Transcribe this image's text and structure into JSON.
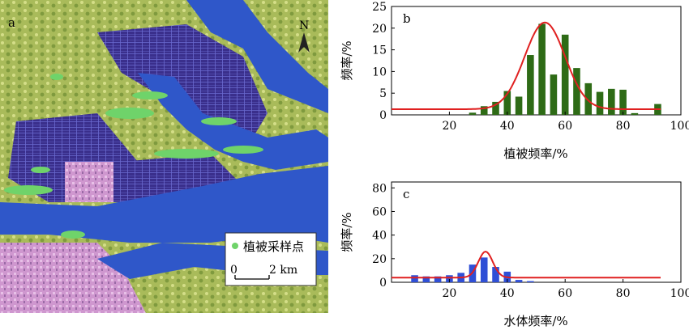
{
  "map": {
    "panel_label": "a",
    "north_label": "N",
    "legend_label": "植被采样点",
    "scale_zero": "0",
    "scale_value": "2 km",
    "colors": {
      "water": "#2f57c9",
      "vegetation_point": "#6fd36a",
      "land": "#b9c96a",
      "urban": "#d79ad2",
      "fields": "#3b2f8f"
    }
  },
  "chart_data": [
    {
      "type": "bar",
      "panel_label": "b",
      "xlabel": "植被频率/%",
      "ylabel": "频率/%",
      "xlim": [
        0,
        100
      ],
      "ylim": [
        0,
        25
      ],
      "xticks": [
        20,
        40,
        60,
        80,
        100
      ],
      "yticks": [
        0,
        5,
        10,
        15,
        20,
        25
      ],
      "bar_color": "#2e6b16",
      "curve_color": "#e02020",
      "x": [
        28,
        32,
        36,
        40,
        44,
        48,
        52,
        56,
        60,
        64,
        68,
        72,
        76,
        80,
        84,
        88,
        92
      ],
      "values": [
        0.5,
        2.0,
        3.0,
        5.5,
        4.2,
        13.8,
        21.0,
        9.3,
        18.5,
        10.8,
        7.3,
        5.3,
        6.0,
        5.8,
        0.4,
        0.0,
        2.5
      ],
      "curve": {
        "mean": 53,
        "sd": 7,
        "baseline": 1.3,
        "peak": 21.3
      },
      "grid": false
    },
    {
      "type": "bar",
      "panel_label": "c",
      "xlabel": "水体频率/%",
      "ylabel": "频率/%",
      "xlim": [
        0,
        100
      ],
      "ylim": [
        0,
        85
      ],
      "xticks": [
        20,
        40,
        60,
        80,
        100
      ],
      "yticks": [
        0,
        20,
        40,
        60,
        80
      ],
      "bar_color": "#2f4fd6",
      "curve_color": "#e02020",
      "x": [
        8,
        12,
        16,
        20,
        24,
        28,
        32,
        36,
        40,
        44,
        48
      ],
      "values": [
        6,
        5,
        5,
        6,
        8,
        15,
        21,
        13,
        9,
        2,
        1
      ],
      "curve": {
        "mean": 32.5,
        "sd": 2.5,
        "baseline": 4,
        "peak": 26
      },
      "grid": false
    }
  ]
}
